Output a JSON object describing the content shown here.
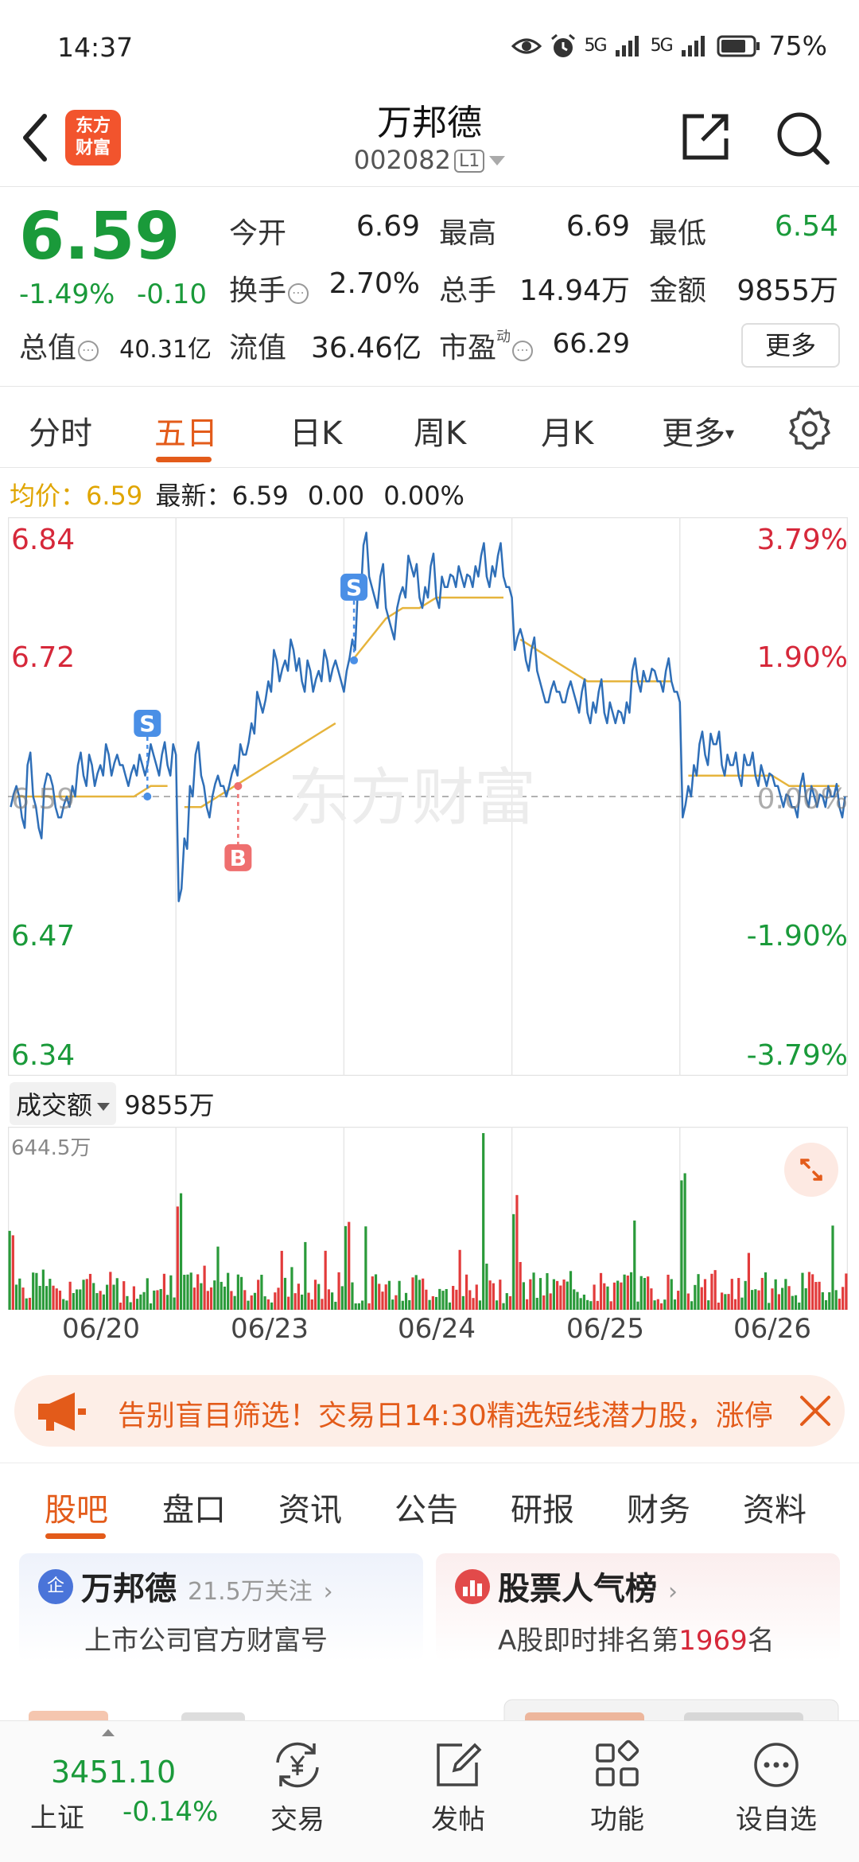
{
  "status_bar": {
    "time": "14:37",
    "signal1": "5G",
    "signal2": "5G",
    "battery": "75%"
  },
  "header": {
    "logo_line1": "东方",
    "logo_line2": "财富",
    "title": "万邦德",
    "code": "002082",
    "code_badge": "L1"
  },
  "quote": {
    "price": "6.59",
    "change_pct": "-1.49%",
    "change_abs": "-0.10",
    "row1": [
      {
        "label": "今开",
        "value": "6.69"
      },
      {
        "label": "最高",
        "value": "6.69"
      },
      {
        "label": "最低",
        "value": "6.54"
      }
    ],
    "row2": [
      {
        "label": "换手",
        "value": "2.70%"
      },
      {
        "label": "总手",
        "value": "14.94万"
      },
      {
        "label": "金额",
        "value": "9855万"
      }
    ],
    "row3": [
      {
        "label": "总值",
        "value": "40.31亿"
      },
      {
        "label": "流值",
        "value": "36.46亿"
      },
      {
        "label": "市盈",
        "sup": "动",
        "value": "66.29"
      }
    ],
    "more_label": "更多"
  },
  "tabs": [
    {
      "label": "分时"
    },
    {
      "label": "五日"
    },
    {
      "label": "日K"
    },
    {
      "label": "周K"
    },
    {
      "label": "月K"
    },
    {
      "label": "更多"
    }
  ],
  "avg_row": {
    "avg_label": "均价：",
    "avg_value": "6.59",
    "latest_label": "最新：",
    "latest_value": "6.59",
    "chg": "0.00",
    "chg_pct": "0.00%"
  },
  "chart_data": {
    "type": "line",
    "y_left_ticks": [
      "6.84",
      "6.72",
      "6.59",
      "6.47",
      "6.34"
    ],
    "y_right_ticks": [
      "3.79%",
      "1.90%",
      "0.00%",
      "-1.90%",
      "-3.79%"
    ],
    "ylim": [
      6.34,
      6.84
    ],
    "x_dates": [
      "06/20",
      "06/23",
      "06/24",
      "06/25",
      "06/26"
    ],
    "prev_close": 6.59,
    "watermark": "东方财富",
    "markers": [
      {
        "label": "S",
        "day": 0,
        "pos": 0.83,
        "price": 6.59
      },
      {
        "label": "B",
        "day": 1,
        "pos": 0.37,
        "price": 6.6
      },
      {
        "label": "S",
        "day": 2,
        "pos": 0.06,
        "price": 6.72
      }
    ],
    "price_series": [
      6.58,
      6.6,
      6.57,
      6.62,
      6.59,
      6.56,
      6.6,
      6.61,
      6.58,
      6.57,
      6.59,
      6.6,
      6.62,
      6.61,
      6.63,
      6.6,
      6.62,
      6.64,
      6.61,
      6.63,
      6.62,
      6.6,
      6.62,
      6.63,
      6.61,
      6.64,
      6.62,
      6.63,
      6.62,
      6.64,
      6.49,
      6.55,
      6.6,
      6.63,
      6.61,
      6.58,
      6.59,
      6.61,
      6.6,
      6.6,
      6.62,
      6.64,
      6.63,
      6.66,
      6.69,
      6.67,
      6.7,
      6.73,
      6.7,
      6.72,
      6.74,
      6.71,
      6.7,
      6.72,
      6.69,
      6.71,
      6.73,
      6.7,
      6.72,
      6.7,
      6.71,
      6.74,
      6.79,
      6.83,
      6.8,
      6.78,
      6.8,
      6.77,
      6.75,
      6.77,
      6.79,
      6.82,
      6.8,
      6.78,
      6.79,
      6.81,
      6.78,
      6.8,
      6.79,
      6.8,
      6.81,
      6.79,
      6.8,
      6.81,
      6.82,
      6.8,
      6.81,
      6.82,
      6.8,
      6.79,
      6.73,
      6.75,
      6.72,
      6.73,
      6.71,
      6.69,
      6.68,
      6.7,
      6.69,
      6.68,
      6.7,
      6.68,
      6.69,
      6.67,
      6.68,
      6.69,
      6.67,
      6.68,
      6.66,
      6.67,
      6.68,
      6.71,
      6.7,
      6.71,
      6.7,
      6.71,
      6.7,
      6.71,
      6.7,
      6.69,
      6.57,
      6.6,
      6.62,
      6.64,
      6.63,
      6.65,
      6.64,
      6.62,
      6.63,
      6.62,
      6.61,
      6.63,
      6.62,
      6.61,
      6.62,
      6.6,
      6.61,
      6.6,
      6.58,
      6.59,
      6.58,
      6.6,
      6.59,
      6.6,
      6.58,
      6.59,
      6.6,
      6.59,
      6.58,
      6.59
    ],
    "avg_series": [
      6.59,
      6.59,
      6.59,
      6.59,
      6.59,
      6.59,
      6.59,
      6.59,
      6.6,
      6.6,
      6.58,
      6.58,
      6.59,
      6.6,
      6.61,
      6.62,
      6.63,
      6.64,
      6.65,
      6.66,
      6.72,
      6.74,
      6.76,
      6.77,
      6.77,
      6.78,
      6.78,
      6.78,
      6.78,
      6.78,
      6.74,
      6.73,
      6.72,
      6.71,
      6.7,
      6.7,
      6.7,
      6.7,
      6.7,
      6.7,
      6.61,
      6.61,
      6.61,
      6.61,
      6.61,
      6.61,
      6.6,
      6.6,
      6.6,
      6.6
    ],
    "volume_label": "成交额",
    "volume_value": "9855万",
    "volume_max_label": "644.5万"
  },
  "banner": {
    "text": "告别盲目筛选！交易日14:30精选短线潜力股，涨停"
  },
  "bottom_tabs": [
    {
      "label": "股吧"
    },
    {
      "label": "盘口"
    },
    {
      "label": "资讯"
    },
    {
      "label": "公告"
    },
    {
      "label": "研报"
    },
    {
      "label": "财务"
    },
    {
      "label": "资料"
    }
  ],
  "card1": {
    "badge": "企",
    "title": "万邦德",
    "follow": "21.5万关注",
    "sub": "上市公司官方财富号"
  },
  "card2": {
    "title": "股票人气榜",
    "sub_pre": "A股即时排名第",
    "rank": "1969",
    "sub_post": "名"
  },
  "index": {
    "value": "3451.10",
    "name": "上证",
    "change": "-0.14%"
  },
  "nav": [
    {
      "label": "交易"
    },
    {
      "label": "发帖"
    },
    {
      "label": "功能"
    },
    {
      "label": "设自选"
    }
  ]
}
